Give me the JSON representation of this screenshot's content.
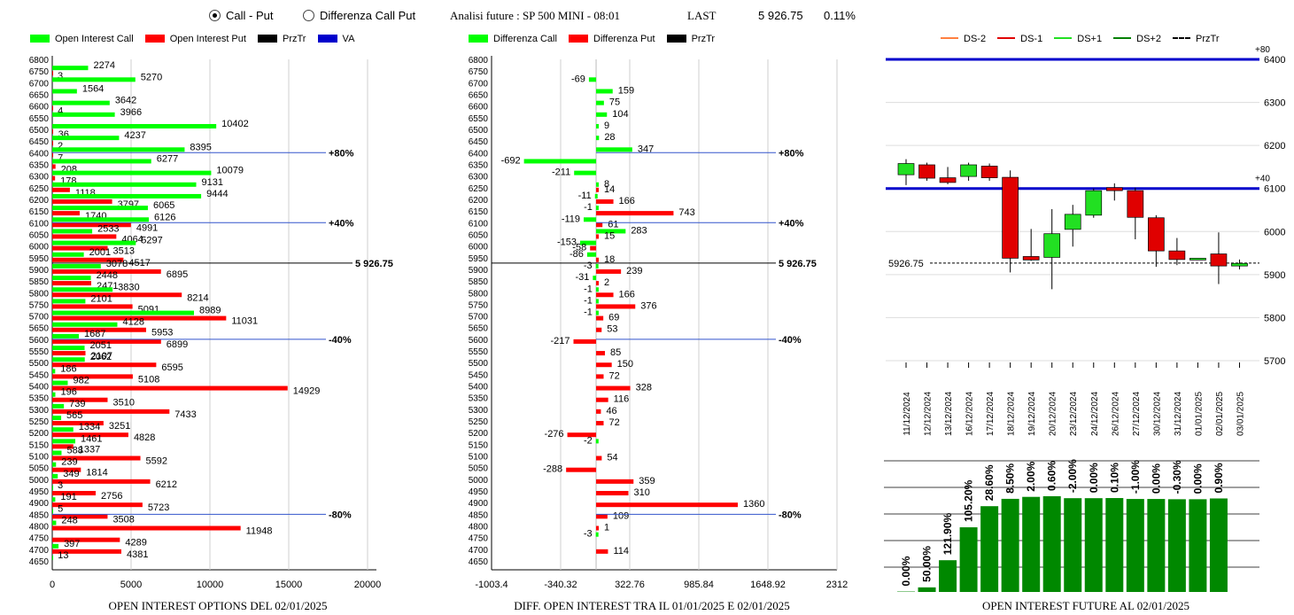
{
  "header": {
    "radio_call_put": "Call - Put",
    "radio_diff": "Differenza Call Put",
    "analysis": "Analisi future : SP 500 MINI - 08:01",
    "last_label": "LAST",
    "last_value": "5 926.75",
    "change": "0.11%"
  },
  "legend1": {
    "call": "Open Interest Call",
    "put": "Open Interest Put",
    "prztr": "PrzTr",
    "va": "VA"
  },
  "legend2": {
    "call": "Differenza Call",
    "put": "Differenza Put",
    "prztr": "PrzTr"
  },
  "legend3": {
    "ds_m2": "DS-2",
    "ds_m1": "DS-1",
    "ds_p1": "DS+1",
    "ds_p2": "DS+2",
    "prztr": "PrzTr"
  },
  "titles": {
    "chart1": "OPEN INTEREST OPTIONS DEL 02/01/2025",
    "chart2": "DIFF. OPEN INTEREST TRA IL 01/01/2025 E 02/01/2025",
    "chart3": "OPEN INTEREST FUTURE AL 02/01/2025"
  },
  "colors": {
    "call": "#00ff00",
    "put": "#ff0000",
    "va": "#0000cc",
    "bull": "#22e022",
    "bear": "#e00000",
    "oi": "#008800"
  },
  "chart_data": [
    {
      "type": "bar",
      "orientation": "horizontal",
      "strikes": [
        6800,
        6750,
        6700,
        6650,
        6600,
        6550,
        6500,
        6450,
        6400,
        6350,
        6300,
        6250,
        6200,
        6150,
        6100,
        6050,
        6000,
        5950,
        5900,
        5850,
        5800,
        5750,
        5700,
        5650,
        5600,
        5550,
        5500,
        5450,
        5400,
        5350,
        5300,
        5250,
        5200,
        5150,
        5100,
        5050,
        5000,
        4950,
        4900,
        4850,
        4800,
        4750,
        4700,
        4650
      ],
      "series": [
        {
          "name": "Open Interest Call",
          "values": [
            null,
            2274,
            5270,
            1564,
            3642,
            3966,
            10402,
            4237,
            8395,
            6277,
            10079,
            9131,
            9444,
            6065,
            6126,
            2533,
            5297,
            2001,
            3078,
            2448,
            3830,
            2101,
            8989,
            4128,
            1687,
            2051,
            2062,
            186,
            982,
            196,
            739,
            565,
            1334,
            1461,
            588,
            239,
            349,
            3,
            191,
            5,
            248,
            null,
            397,
            13
          ]
        },
        {
          "name": "Open Interest Put",
          "values": [
            null,
            3,
            null,
            null,
            4,
            null,
            36,
            2,
            7,
            208,
            178,
            1118,
            3797,
            1740,
            4991,
            4064,
            3513,
            4517,
            6895,
            2471,
            8214,
            5091,
            11031,
            5953,
            6899,
            2107,
            6595,
            5108,
            14929,
            3510,
            7433,
            3251,
            4828,
            1337,
            5592,
            1814,
            6212,
            2756,
            5723,
            3508,
            11948,
            4289,
            4381,
            null
          ]
        }
      ],
      "levels": [
        {
          "label": "+80%",
          "strike": 6400
        },
        {
          "label": "+40%",
          "strike": 6100
        },
        {
          "label": "5 926.75",
          "strike": 5926.75
        },
        {
          "label": "-40%",
          "strike": 5600
        },
        {
          "label": "-80%",
          "strike": 4850
        }
      ],
      "xticks": [
        "0",
        "5000",
        "10000",
        "15000",
        "20000"
      ],
      "xlim": [
        0,
        20000
      ]
    },
    {
      "type": "bar",
      "orientation": "horizontal",
      "strikes": [
        6700,
        6650,
        6600,
        6550,
        6500,
        6450,
        6400,
        6350,
        6300,
        6250,
        6200,
        6200,
        6150,
        6150,
        6100,
        6100,
        6050,
        6050,
        6000,
        6000,
        5950,
        5950,
        5900,
        5900,
        5850,
        5850,
        5800,
        5800,
        5750,
        5750,
        5700,
        5700,
        5650,
        5600,
        5550,
        5500,
        5450,
        5400,
        5350,
        5300,
        5250,
        5200,
        5150,
        5100,
        5050,
        5000,
        4950,
        4900,
        4850,
        4800,
        4750,
        4700
      ],
      "series": [
        {
          "name": "Differenza Call",
          "values": [
            -69,
            159,
            75,
            104,
            9,
            28,
            347,
            -692,
            -211,
            8,
            -11,
            null,
            -1,
            null,
            -119,
            null,
            283,
            null,
            -153,
            null,
            -86,
            null,
            -3,
            null,
            -31,
            null,
            -1,
            null,
            -1,
            null,
            -1,
            null,
            null,
            null,
            null,
            null,
            null,
            null,
            null,
            null,
            null,
            null,
            -2,
            null,
            null,
            null,
            null,
            null,
            null,
            null,
            -3,
            null
          ]
        },
        {
          "name": "Differenza Put",
          "values": [
            null,
            null,
            null,
            null,
            null,
            null,
            null,
            null,
            null,
            14,
            166,
            null,
            743,
            null,
            61,
            null,
            15,
            null,
            -58,
            null,
            18,
            null,
            239,
            null,
            2,
            null,
            166,
            null,
            376,
            null,
            69,
            null,
            53,
            -217,
            85,
            150,
            72,
            328,
            116,
            46,
            72,
            -276,
            null,
            54,
            -288,
            359,
            310,
            1360,
            109,
            1,
            null,
            114
          ]
        }
      ],
      "levels": [
        {
          "label": "+80%",
          "strike": 6400
        },
        {
          "label": "+40%",
          "strike": 6100
        },
        {
          "label": "5 926.75",
          "strike": 5926.75
        },
        {
          "label": "-40%",
          "strike": 5600
        },
        {
          "label": "-80%",
          "strike": 4850
        }
      ],
      "xticks": [
        "-1003.4",
        "-340.32",
        "322.76",
        "985.84",
        "1648.92",
        "2312"
      ],
      "xlim": [
        -1003.4,
        2312
      ]
    },
    {
      "type": "candlestick",
      "dates": [
        "11/12/2024",
        "12/12/2024",
        "13/12/2024",
        "16/12/2024",
        "17/12/2024",
        "18/12/2024",
        "19/12/2024",
        "20/12/2024",
        "23/12/2024",
        "24/12/2024",
        "26/12/2024",
        "27/12/2024",
        "30/12/2024",
        "31/12/2024",
        "01/01/2025",
        "02/01/2025",
        "03/01/2025"
      ],
      "ohlc": [
        [
          6132,
          6168,
          6108,
          6158
        ],
        [
          6155,
          6160,
          6118,
          6124
        ],
        [
          6125,
          6150,
          6110,
          6114
        ],
        [
          6128,
          6160,
          6118,
          6155
        ],
        [
          6152,
          6158,
          6118,
          6125
        ],
        [
          6126,
          6142,
          5905,
          5938
        ],
        [
          5942,
          6006,
          5932,
          5934
        ],
        [
          5940,
          6052,
          5866,
          5995
        ],
        [
          6005,
          6062,
          5965,
          6040
        ],
        [
          6038,
          6100,
          6032,
          6095
        ],
        [
          6102,
          6112,
          6072,
          6095
        ],
        [
          6095,
          6102,
          5982,
          6033
        ],
        [
          6032,
          6038,
          5918,
          5955
        ],
        [
          5955,
          5985,
          5922,
          5935
        ],
        [
          5938,
          5938,
          5938,
          5938
        ],
        [
          5948,
          5998,
          5878,
          5920
        ],
        [
          5920,
          5935,
          5912,
          5926
        ]
      ],
      "levels": [
        {
          "label": "+80",
          "value": 6400
        },
        {
          "label": "+40",
          "value": 6100
        }
      ],
      "last_label": "5926.75",
      "last_value": 5926.75,
      "yticks": [
        "6400",
        "6300",
        "6200",
        "6100",
        "6000",
        "5900",
        "5800",
        "5700"
      ],
      "ylim": [
        5700,
        6400
      ]
    },
    {
      "type": "bar",
      "categories": [
        "11/12/2024",
        "12/12/2024",
        "13/12/2024",
        "16/12/2024",
        "17/12/2024",
        "18/12/2024",
        "19/12/2024",
        "20/12/2024",
        "23/12/2024",
        "24/12/2024",
        "26/12/2024",
        "27/12/2024",
        "30/12/2024",
        "31/12/2024",
        "01/01/2025",
        "02/01/2025",
        "03/01/2025"
      ],
      "labels": [
        "0.00%",
        "50.00%",
        "121.90%",
        "105.20%",
        "28.60%",
        "8.50%",
        "2.00%",
        "0.60%",
        "-2.00%",
        "0.00%",
        "0.10%",
        "-1.00%",
        "0.00%",
        "-0.30%",
        "0.00%",
        "0.90%",
        null
      ],
      "values": [
        0.3,
        3.5,
        24.2,
        49.3,
        65.4,
        71.0,
        72.5,
        73.0,
        71.5,
        71.5,
        71.6,
        70.9,
        70.9,
        70.7,
        70.7,
        71.3,
        null
      ],
      "ylim": [
        0,
        100
      ]
    }
  ]
}
